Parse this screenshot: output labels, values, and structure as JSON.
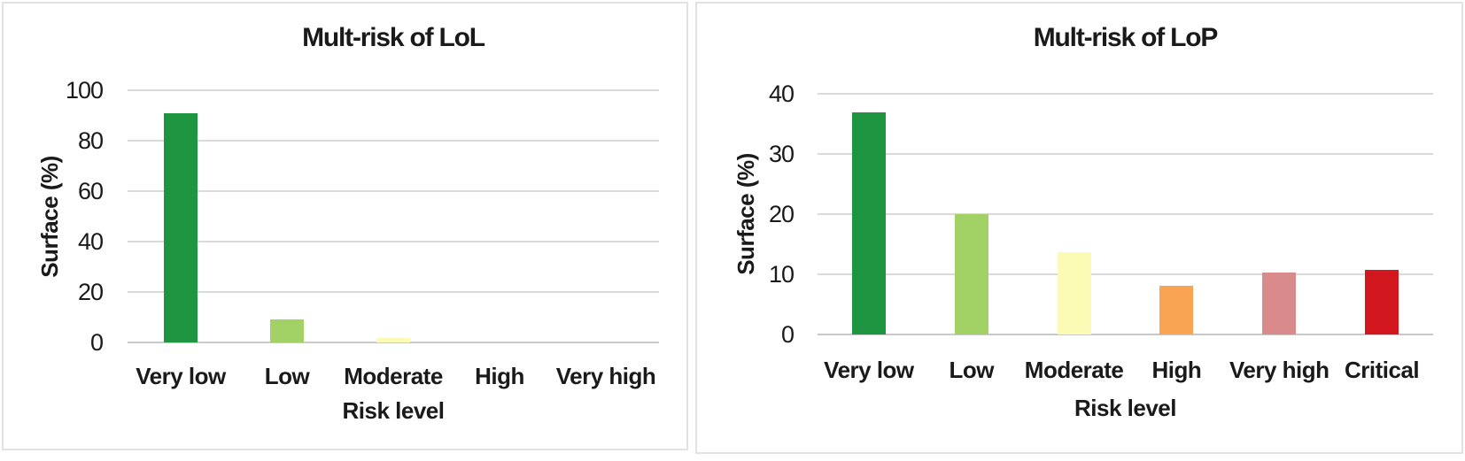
{
  "figure": {
    "panels": [
      {
        "title": "Mult-risk of LoL"
      },
      {
        "title": "Mult-risk of LoP"
      }
    ]
  },
  "chart_data": [
    {
      "type": "bar",
      "title": "Mult-risk of LoL",
      "xlabel": "Risk level",
      "ylabel": "Surface (%)",
      "categories": [
        "Very low",
        "Low",
        "Moderate",
        "High",
        "Very high"
      ],
      "values": [
        91,
        9,
        1.7,
        0,
        0
      ],
      "bar_colors": [
        "#1E9641",
        "#A2D166",
        "#FCFBB5",
        "#F9A453",
        "#D98B8C"
      ],
      "ylim": [
        0,
        100
      ],
      "ytick_step": 20,
      "yticks": [
        0,
        20,
        40,
        60,
        80,
        100
      ],
      "grid": "horizontal",
      "legend": "none"
    },
    {
      "type": "bar",
      "title": "Mult-risk of LoP",
      "xlabel": "Risk level",
      "ylabel": "Surface (%)",
      "categories": [
        "Very low",
        "Low",
        "Moderate",
        "High",
        "Very high",
        "Critical"
      ],
      "values": [
        36.9,
        20,
        13.7,
        8.1,
        10.3,
        10.8
      ],
      "bar_colors": [
        "#1E9641",
        "#A2D166",
        "#FCFBB5",
        "#F9A453",
        "#D98B8C",
        "#D2181E"
      ],
      "ylim": [
        0,
        40
      ],
      "ytick_step": 10,
      "yticks": [
        0,
        10,
        20,
        30,
        40
      ],
      "grid": "horizontal",
      "legend": "none"
    }
  ],
  "style": {
    "grid_color": "#DADADA",
    "zero_line_color": "#C9C9C9",
    "panel_border_color": "#E2E2E2",
    "text_color": "#1A1A1A",
    "background": "#FFFFFF"
  }
}
